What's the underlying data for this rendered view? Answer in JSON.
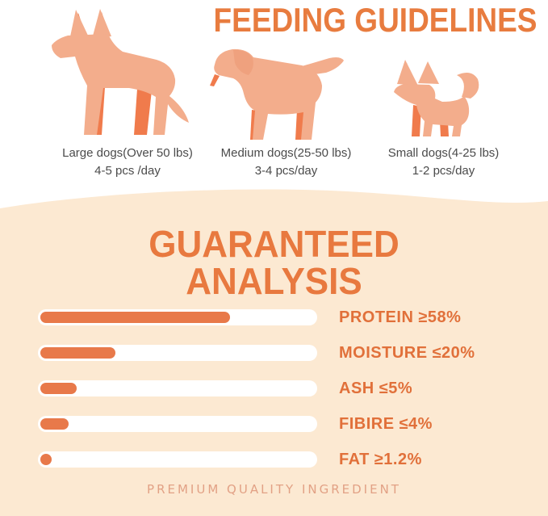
{
  "header": {
    "title": "FEEDING GUIDELINES"
  },
  "feeding": {
    "dogs": [
      {
        "icon": "large-dog-icon",
        "label": "Large dogs(Over 50 lbs)",
        "amount": "4-5 pcs /day"
      },
      {
        "icon": "medium-dog-icon",
        "label": "Medium dogs(25-50 lbs)",
        "amount": "3-4 pcs/day"
      },
      {
        "icon": "small-dog-icon",
        "label": "Small dogs(4-25 lbs)",
        "amount": "1-2 pcs/day"
      }
    ]
  },
  "analysis": {
    "title_line1": "GUARANTEED",
    "title_line2": "ANALYSIS",
    "rows": [
      {
        "label": "PROTEIN",
        "value": "≥58%",
        "bar_percent": 68
      },
      {
        "label": "MOISTURE",
        "value": "≤20%",
        "bar_percent": 27
      },
      {
        "label": "ASH",
        "value": "≤5%",
        "bar_percent": 13
      },
      {
        "label": "FIBIRE",
        "value": "≤4%",
        "bar_percent": 10
      },
      {
        "label": "FAT",
        "value": "≥1.2%",
        "bar_percent": 3
      }
    ]
  },
  "footer": {
    "text": "PREMIUM QUALITY INGREDIENT"
  },
  "colors": {
    "accent_orange": "#E8793F",
    "bar_fill": "#E8794A",
    "bar_track": "#FFFFFF",
    "dog_fill": "#F3AD8C",
    "dog_accent": "#F07B4C",
    "section_bg": "#FCE9D2",
    "caption_text": "#4B4B4B",
    "footer_text": "#E2A185"
  },
  "chart_data": {
    "type": "bar",
    "title": "GUARANTEED ANALYSIS",
    "categories": [
      "PROTEIN",
      "MOISTURE",
      "ASH",
      "FIBIRE",
      "FAT"
    ],
    "values": [
      58,
      20,
      5,
      4,
      1.2
    ],
    "comparators": [
      "≥",
      "≤",
      "≤",
      "≤",
      "≥"
    ],
    "bar_fill_fraction_of_track": [
      0.68,
      0.27,
      0.13,
      0.1,
      0.03
    ],
    "orientation": "horizontal",
    "xlabel": "",
    "ylabel": "",
    "legend": "none",
    "grid": false
  }
}
